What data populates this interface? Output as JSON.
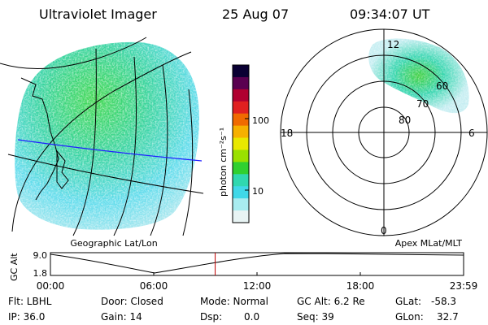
{
  "header": {
    "instrument": "Ultraviolet Imager",
    "date": "25 Aug 07",
    "time": "09:34:07 UT"
  },
  "geo_panel": {
    "label": "Geographic Lat/Lon"
  },
  "apex_panel": {
    "label": "Apex MLat/MLT",
    "mlt_labels": {
      "top": "12",
      "left": "18",
      "right": "6",
      "bottom": "0"
    },
    "lat_labels": [
      "60",
      "70",
      "80"
    ]
  },
  "colorbar": {
    "unit_label": "photon cm⁻²s⁻¹",
    "ticks": [
      "100",
      "10"
    ],
    "colors": [
      "#0a0033",
      "#5a0050",
      "#b00030",
      "#e02020",
      "#f06a00",
      "#f6b000",
      "#e8e800",
      "#9ae000",
      "#30d030",
      "#30d8b0",
      "#40d8e8",
      "#a8ecf0",
      "#e8f4f4"
    ]
  },
  "altitude_plot": {
    "ylabel": "GC Alt",
    "yticks": [
      "9.0",
      "1.8"
    ],
    "xticks": [
      "00:00",
      "06:00",
      "12:00",
      "18:00",
      "23:59"
    ],
    "marker_hour": 9.57,
    "marker_color": "#c00000"
  },
  "status": {
    "flt": "Flt: LBHL",
    "ip": "IP: 36.0",
    "door": "Door: Closed",
    "gain": "Gain: 14",
    "mode": "Mode: Normal",
    "dsp_label": "Dsp:",
    "dsp_value": "0.0",
    "gc_alt": "GC Alt: 6.2 Re",
    "seq": "Seq: 39",
    "glat_label": "GLat:",
    "glat_value": "-58.3",
    "glon_label": "GLon:",
    "glon_value": "32.7"
  }
}
